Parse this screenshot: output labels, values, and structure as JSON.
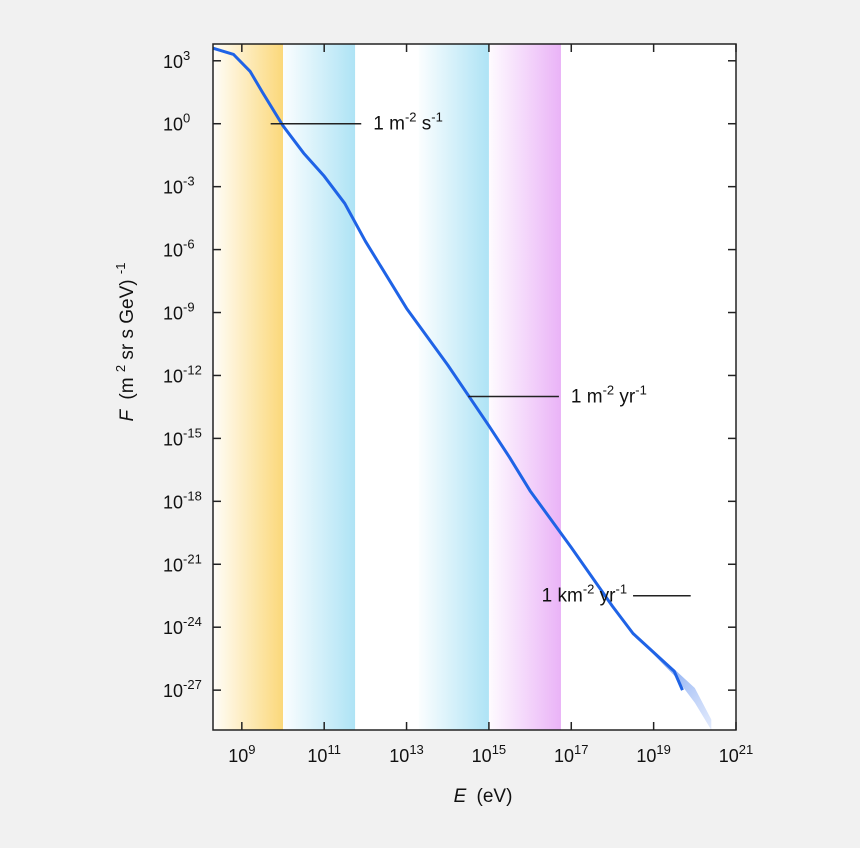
{
  "chart_data": {
    "type": "line",
    "xlabel": {
      "var": "E",
      "unit": "(eV)"
    },
    "ylabel": {
      "var": "F",
      "pre": "(m",
      "sup1": "2",
      "mid": " sr s GeV)",
      "sup2": "-1"
    },
    "x_scale": "log10",
    "y_scale": "log10",
    "xlim_exp": [
      8.3,
      21.0
    ],
    "ylim_exp": [
      -28.9,
      3.8
    ],
    "x_ticks": [
      {
        "base": "10",
        "exp": "9"
      },
      {
        "base": "10",
        "exp": "11"
      },
      {
        "base": "10",
        "exp": "13"
      },
      {
        "base": "10",
        "exp": "15"
      },
      {
        "base": "10",
        "exp": "17"
      },
      {
        "base": "10",
        "exp": "19"
      },
      {
        "base": "10",
        "exp": "21"
      }
    ],
    "y_ticks": [
      {
        "base": "10",
        "exp": "3"
      },
      {
        "base": "10",
        "exp": "0"
      },
      {
        "base": "10",
        "exp": "-3"
      },
      {
        "base": "10",
        "exp": "-6"
      },
      {
        "base": "10",
        "exp": "-9"
      },
      {
        "base": "10",
        "exp": "-12"
      },
      {
        "base": "10",
        "exp": "-15"
      },
      {
        "base": "10",
        "exp": "-18"
      },
      {
        "base": "10",
        "exp": "-21"
      },
      {
        "base": "10",
        "exp": "-24"
      },
      {
        "base": "10",
        "exp": "-27"
      }
    ],
    "series": [
      {
        "log_x": [
          8.3,
          8.8,
          9.2,
          9.5,
          10.0,
          10.5,
          11.0,
          11.5,
          12.0,
          13.0,
          14.0,
          15.0,
          15.5,
          16.0,
          17.0,
          18.0,
          18.5,
          19.0,
          19.5,
          19.7
        ],
        "log_y": [
          3.6,
          3.3,
          2.5,
          1.5,
          -0.1,
          -1.4,
          -2.5,
          -3.8,
          -5.6,
          -8.8,
          -11.5,
          -14.4,
          -15.9,
          -17.5,
          -20.2,
          -23.0,
          -24.3,
          -25.2,
          -26.1,
          -27.0
        ],
        "color": "#1f63e6"
      }
    ],
    "uncertainty_band": {
      "log_x": [
        18.5,
        19.0,
        19.5,
        20.0,
        20.4
      ],
      "log_y_upper": [
        -24.3,
        -25.2,
        -26.0,
        -26.9,
        -28.4
      ],
      "log_y_lower": [
        -24.3,
        -25.3,
        -26.3,
        -27.6,
        -28.9
      ],
      "color": "#a8c1f7"
    },
    "bands": [
      {
        "x_exp": [
          8.3,
          10.0
        ],
        "color": "#fbd87a"
      },
      {
        "x_exp": [
          10.0,
          11.75
        ],
        "color": "#aee3f5"
      },
      {
        "x_exp": [
          13.3,
          15.0
        ],
        "color": "#aee3f5"
      },
      {
        "x_exp": [
          15.0,
          16.75
        ],
        "color": "#eab3f7"
      }
    ],
    "annotations": [
      {
        "line_x_exp": [
          9.7,
          11.9
        ],
        "y_exp": 0.0,
        "parts": [
          "1 m",
          "-2",
          " s",
          "-1"
        ]
      },
      {
        "line_x_exp": [
          14.5,
          16.7
        ],
        "y_exp": -13.0,
        "parts": [
          "1 m",
          "-2",
          " yr",
          "-1"
        ]
      },
      {
        "line_x_exp": [
          18.5,
          19.9
        ],
        "y_exp": -22.5,
        "parts": [
          "1 km",
          "-2",
          " yr",
          "-1"
        ],
        "label_side": "left"
      }
    ],
    "grid": false,
    "legend": "none",
    "colors": {
      "background": "#f1f1f1",
      "plot_area": "#ffffff",
      "axis": "#222222"
    }
  }
}
